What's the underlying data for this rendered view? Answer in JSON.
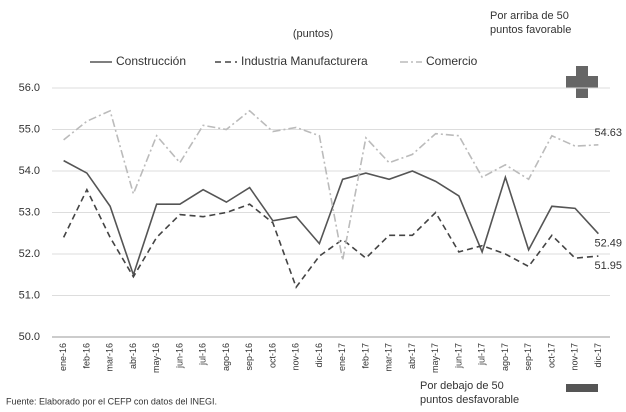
{
  "chart_data": {
    "type": "line",
    "subtitle": "(puntos)",
    "annotations": [
      [
        "Por arriba de 50",
        "puntos favorable"
      ],
      [
        "Por debajo de 50",
        "puntos desfavorable"
      ]
    ],
    "source": "Fuente: Elaborado por el CEFP con datos del INEGI.",
    "categories": [
      "ene-16",
      "feb-16",
      "mar-16",
      "abr-16",
      "may-16",
      "jun-16",
      "jul-16",
      "ago-16",
      "sep-16",
      "oct-16",
      "nov-16",
      "dic-16",
      "ene-17",
      "feb-17",
      "mar-17",
      "abr-17",
      "may-17",
      "jun-17",
      "jul-17",
      "ago-17",
      "sep-17",
      "oct-17",
      "nov-17",
      "dic-17"
    ],
    "series": [
      {
        "name": "Construcción",
        "color": "#555555",
        "dash": "solid",
        "values": [
          54.25,
          53.95,
          53.15,
          51.5,
          53.2,
          53.2,
          53.55,
          53.25,
          53.6,
          52.8,
          52.9,
          52.25,
          53.8,
          53.95,
          53.8,
          54.0,
          53.75,
          53.4,
          52.05,
          53.85,
          52.1,
          53.15,
          53.1,
          52.49
        ]
      },
      {
        "name": "Industria Manufacturera",
        "color": "#444444",
        "dash": "dashed",
        "values": [
          52.4,
          53.55,
          52.4,
          51.45,
          52.4,
          52.95,
          52.9,
          53.0,
          53.2,
          52.75,
          51.2,
          51.95,
          52.35,
          51.9,
          52.45,
          52.45,
          53.0,
          52.05,
          52.2,
          52.0,
          51.7,
          52.45,
          51.9,
          51.95
        ]
      },
      {
        "name": "Comercio",
        "color": "#bbbbbb",
        "dash": "dashdot",
        "values": [
          54.75,
          55.2,
          55.45,
          53.45,
          54.85,
          54.2,
          55.1,
          55.0,
          55.45,
          54.95,
          55.05,
          54.85,
          51.85,
          54.8,
          54.2,
          54.4,
          54.9,
          54.85,
          53.85,
          54.15,
          53.8,
          54.85,
          54.6,
          54.63
        ]
      }
    ],
    "data_labels": "last",
    "ylim": [
      50,
      56
    ],
    "yticks": [
      {
        "value": 50,
        "label": "50.0"
      },
      {
        "value": 51,
        "label": "51.0"
      },
      {
        "value": 52,
        "label": "52.0"
      },
      {
        "value": 53,
        "label": "53.0"
      },
      {
        "value": 54,
        "label": "54.0"
      },
      {
        "value": 55,
        "label": "55.0"
      },
      {
        "value": 56,
        "label": "56.0"
      }
    ],
    "grid": true
  }
}
